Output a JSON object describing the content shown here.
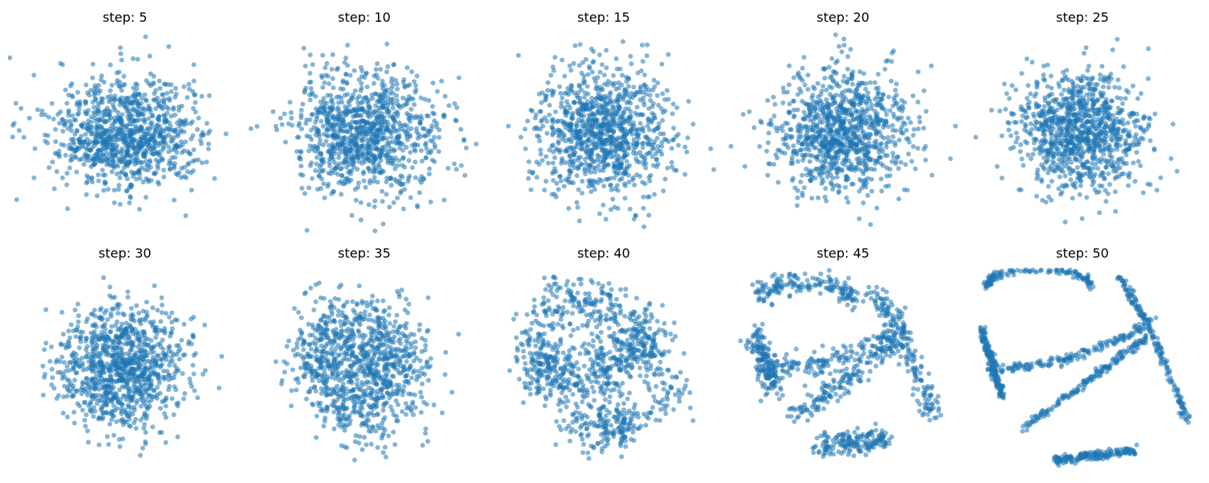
{
  "figure": {
    "point_color": "#1f77b4",
    "point_opacity": 0.55
  },
  "chart_data": [
    {
      "type": "scatter",
      "title": "step: 5",
      "step": 5,
      "points": 1000,
      "structure": 0.0,
      "spread": [
        1.0,
        0.62
      ],
      "xlim": [
        -3.2,
        3.2
      ],
      "ylim": [
        -2.2,
        2.2
      ],
      "grid": false,
      "axes_visible": false
    },
    {
      "type": "scatter",
      "title": "step: 10",
      "step": 10,
      "points": 1000,
      "structure": 0.0,
      "spread": [
        1.0,
        0.68
      ],
      "xlim": [
        -3.2,
        3.2
      ],
      "ylim": [
        -2.2,
        2.2
      ],
      "grid": false,
      "axes_visible": false
    },
    {
      "type": "scatter",
      "title": "step: 15",
      "step": 15,
      "points": 1000,
      "structure": 0.05,
      "spread": [
        1.0,
        0.72
      ],
      "xlim": [
        -3.2,
        3.2
      ],
      "ylim": [
        -2.2,
        2.2
      ],
      "grid": false,
      "axes_visible": false
    },
    {
      "type": "scatter",
      "title": "step: 20",
      "step": 20,
      "points": 1000,
      "structure": 0.12,
      "spread": [
        1.0,
        0.74
      ],
      "xlim": [
        -3.2,
        3.2
      ],
      "ylim": [
        -2.2,
        2.2
      ],
      "grid": false,
      "axes_visible": false
    },
    {
      "type": "scatter",
      "title": "step: 25",
      "step": 25,
      "points": 1000,
      "structure": 0.2,
      "spread": [
        1.0,
        0.74
      ],
      "xlim": [
        -3.2,
        3.2
      ],
      "ylim": [
        -2.2,
        2.2
      ],
      "grid": false,
      "axes_visible": false
    },
    {
      "type": "scatter",
      "title": "step: 30",
      "step": 30,
      "points": 1000,
      "structure": 0.32,
      "spread": [
        1.0,
        0.78
      ],
      "xlim": [
        -3.2,
        3.2
      ],
      "ylim": [
        -2.2,
        2.2
      ],
      "grid": false,
      "axes_visible": false
    },
    {
      "type": "scatter",
      "title": "step: 35",
      "step": 35,
      "points": 1000,
      "structure": 0.48,
      "spread": [
        1.0,
        0.8
      ],
      "xlim": [
        -3.2,
        3.2
      ],
      "ylim": [
        -2.2,
        2.2
      ],
      "grid": false,
      "axes_visible": false
    },
    {
      "type": "scatter",
      "title": "step: 40",
      "step": 40,
      "points": 1000,
      "structure": 0.65,
      "spread": [
        1.0,
        0.8
      ],
      "xlim": [
        -3.2,
        3.2
      ],
      "ylim": [
        -2.2,
        2.2
      ],
      "grid": false,
      "axes_visible": false
    },
    {
      "type": "scatter",
      "title": "step: 45",
      "step": 45,
      "points": 1000,
      "structure": 0.85,
      "spread": [
        1.0,
        0.8
      ],
      "xlim": [
        -3.2,
        3.2
      ],
      "ylim": [
        -2.2,
        2.2
      ],
      "grid": false,
      "axes_visible": false
    },
    {
      "type": "scatter",
      "title": "step: 50",
      "step": 50,
      "points": 1000,
      "structure": 1.0,
      "spread": [
        1.0,
        0.8
      ],
      "xlim": [
        -3.2,
        3.2
      ],
      "ylim": [
        -2.2,
        2.2
      ],
      "grid": false,
      "axes_visible": false
    }
  ]
}
